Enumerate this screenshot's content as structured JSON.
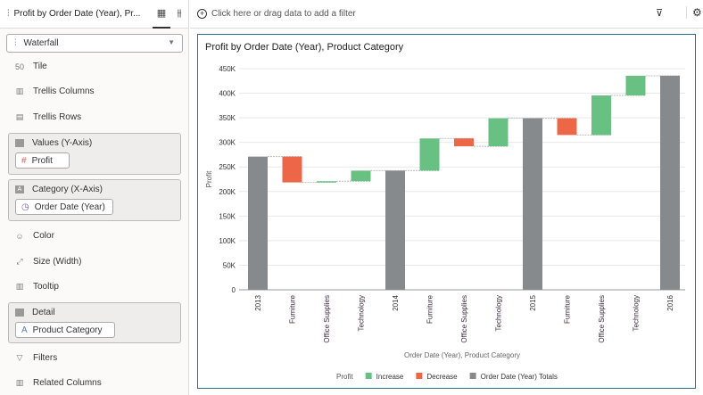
{
  "panel": {
    "title": "Profit by Order Date (Year), Pr...",
    "chart_type": "Waterfall",
    "rows": [
      {
        "icon": "tile-icon",
        "label": "Tile"
      },
      {
        "icon": "trellis-columns-icon",
        "label": "Trellis Columns"
      },
      {
        "icon": "trellis-rows-icon",
        "label": "Trellis Rows"
      },
      {
        "icon": "color-icon",
        "label": "Color"
      },
      {
        "icon": "size-icon",
        "label": "Size (Width)"
      },
      {
        "icon": "tooltip-icon",
        "label": "Tooltip"
      },
      {
        "icon": "filter-icon",
        "label": "Filters"
      },
      {
        "icon": "related-columns-icon",
        "label": "Related Columns"
      }
    ],
    "groups": [
      {
        "label": "Values (Y-Axis)",
        "pill": "Profit",
        "pill_icon": "#"
      },
      {
        "label": "Category (X-Axis)",
        "pill": "Order Date (Year)",
        "pill_icon": "◷"
      },
      {
        "label": "Detail",
        "pill": "Product Category",
        "pill_icon": "A"
      }
    ]
  },
  "filterbar": {
    "placeholder": "Click here or drag data to add a filter"
  },
  "chart_data": {
    "type": "waterfall",
    "title": "Profit by Order Date (Year), Product Category",
    "xlabel": "Order Date (Year), Product Category",
    "ylabel": "Profit",
    "ylim": [
      0,
      450000
    ],
    "yticks": [
      "0",
      "50K",
      "100K",
      "150K",
      "200K",
      "250K",
      "300K",
      "350K",
      "400K",
      "450K"
    ],
    "categories": [
      "2013",
      "Furniture",
      "Office Supplies",
      "Technology",
      "2014",
      "Furniture",
      "Office Supplies",
      "Technology",
      "2015",
      "Furniture",
      "Office Supplies",
      "Technology",
      "2016"
    ],
    "values": [
      271000,
      -52500,
      2500,
      21500,
      242500,
      65500,
      -16000,
      57000,
      349000,
      -34000,
      80500,
      40000,
      435500
    ],
    "kinds": [
      "total",
      "delta",
      "delta",
      "delta",
      "total",
      "delta",
      "delta",
      "delta",
      "total",
      "delta",
      "delta",
      "delta",
      "total"
    ],
    "grid": true,
    "legend": {
      "title": "Profit",
      "position": "bottom",
      "items": [
        {
          "label": "Increase",
          "color": "#68c182"
        },
        {
          "label": "Decrease",
          "color": "#ed6647"
        },
        {
          "label": "Order Date (Year) Totals",
          "color": "#878a8d"
        }
      ]
    }
  }
}
